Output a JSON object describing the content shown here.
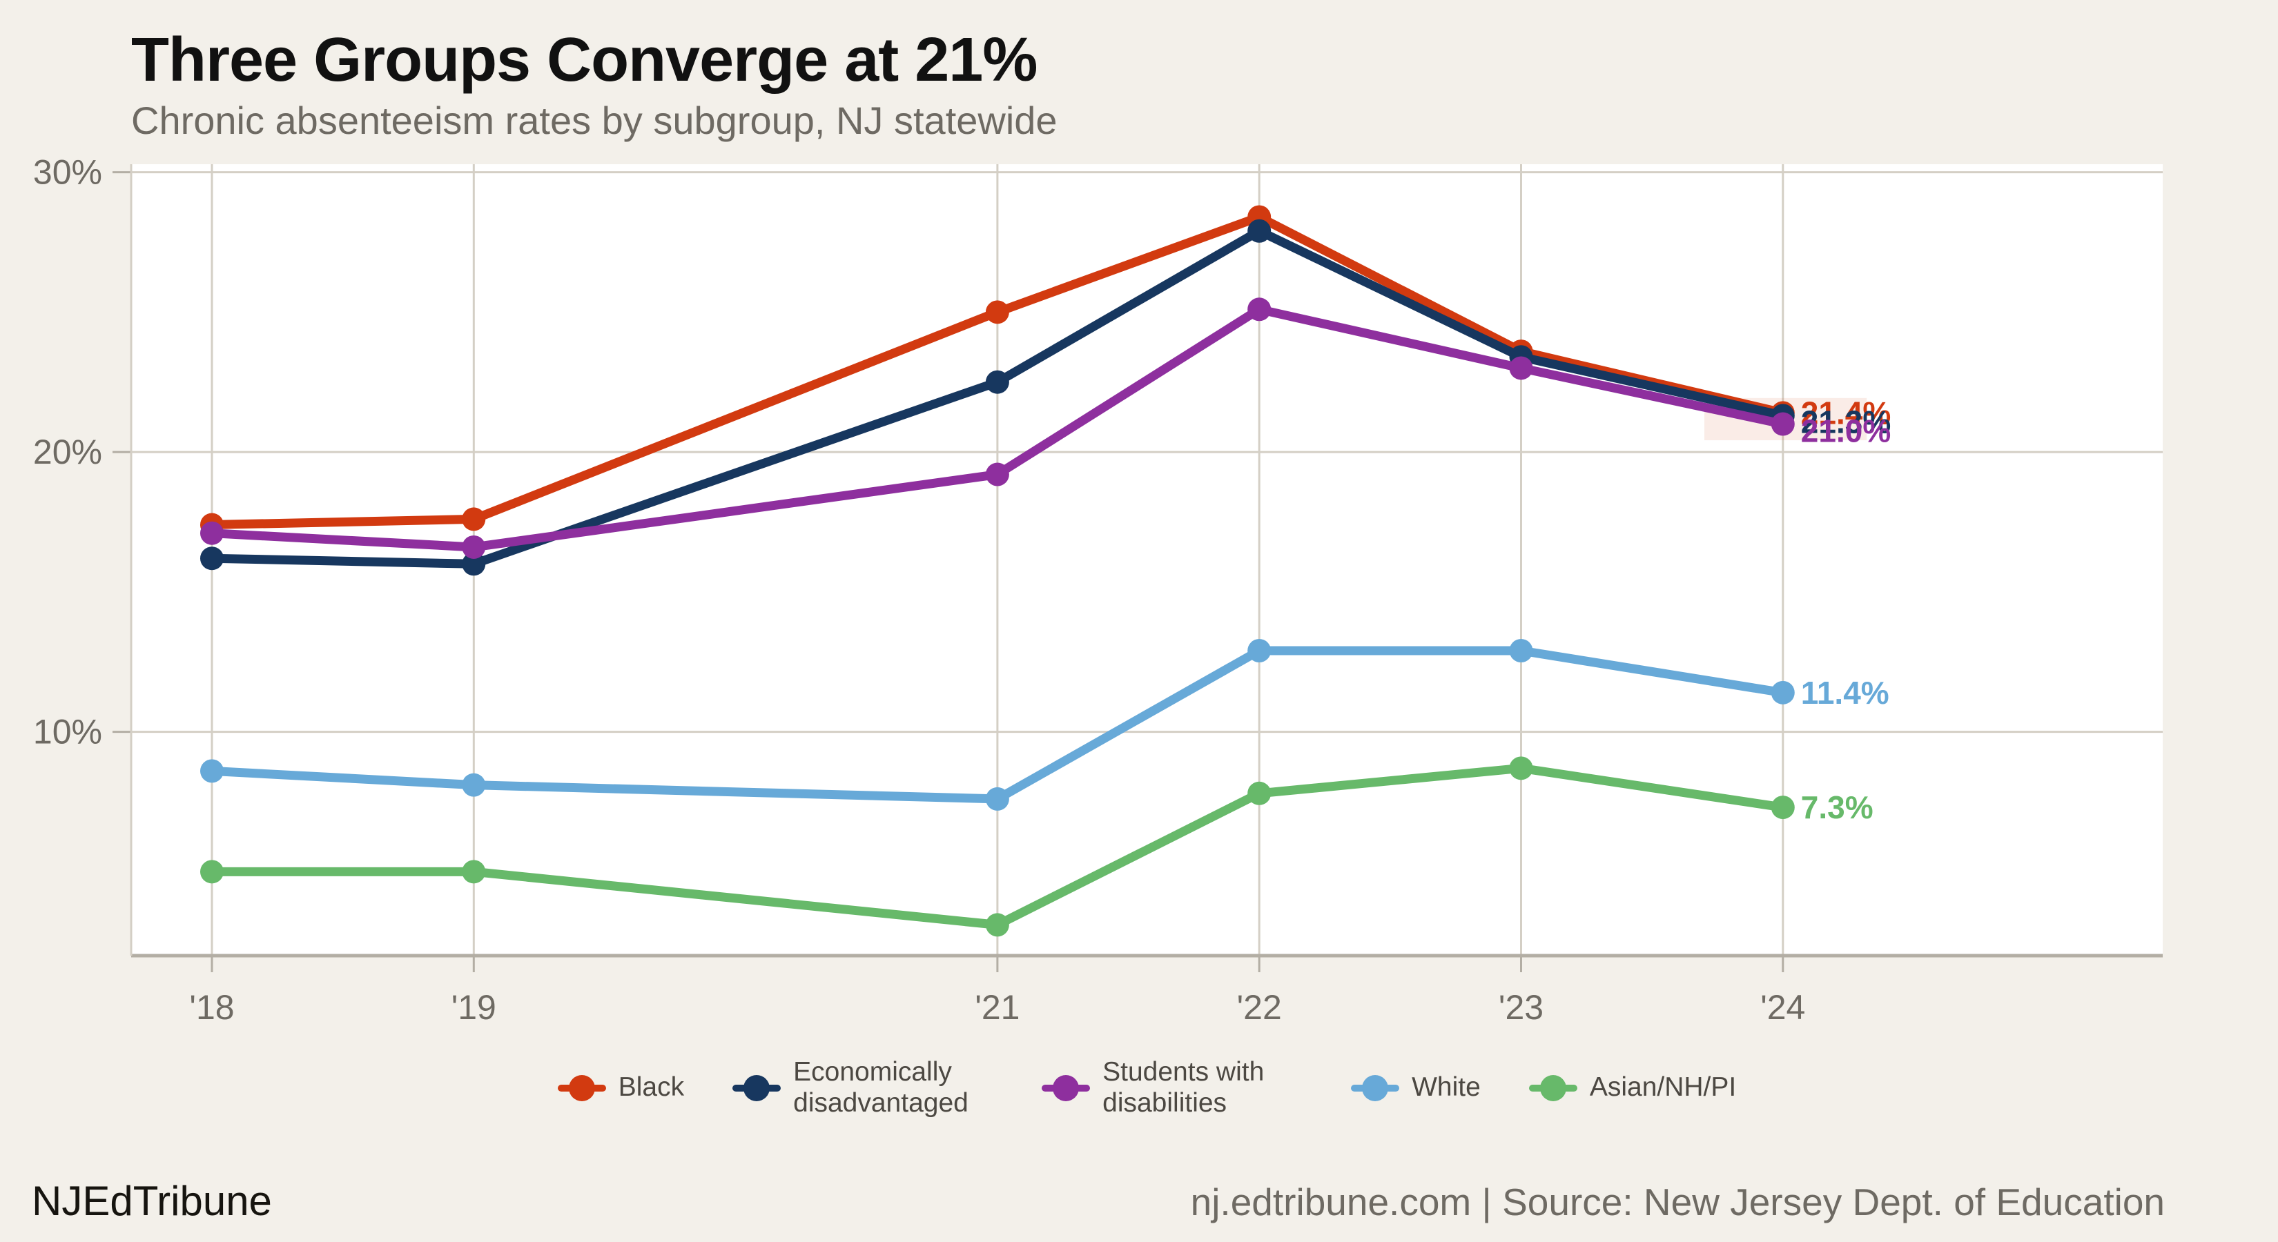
{
  "title": "Three Groups Converge at 21%",
  "subtitle": "Chronic absenteeism rates by subgroup, NJ statewide",
  "footer": {
    "left": "NJEdTribune",
    "right": "nj.edtribune.com | Source: New Jersey Dept. of Education"
  },
  "colors": {
    "background": "#f3f0ea",
    "plot_background": "#ffffff",
    "grid": "#d4cfc5",
    "axis": "#b3aea4",
    "axis_text": "#6e6a63",
    "title_text": "#111111",
    "subtitle_text": "#6e6a63",
    "legend_text": "#4c4842",
    "highlight_fill": "rgba(209,64,18,0.10)"
  },
  "chart_data": {
    "type": "line",
    "x": [
      2018,
      2019,
      2021,
      2022,
      2023,
      2024
    ],
    "x_tick_labels": [
      "'18",
      "'19",
      "'21",
      "'22",
      "'23",
      "'24"
    ],
    "y_ticks": [
      {
        "value": 10,
        "label": "10%"
      },
      {
        "value": 20,
        "label": "20%"
      },
      {
        "value": 30,
        "label": "30%"
      }
    ],
    "ylim": [
      2.0,
      30.3
    ],
    "grid": true,
    "legend_position": "bottom",
    "title": "Three Groups Converge at 21%",
    "subtitle": "Chronic absenteeism rates by subgroup, NJ statewide",
    "series": [
      {
        "name": "Black",
        "color": "#d23a10",
        "values": [
          17.4,
          17.6,
          25.0,
          28.4,
          23.6,
          21.4
        ],
        "end_label": "21.4%"
      },
      {
        "name": "Economically disadvantaged",
        "color": "#17375f",
        "values": [
          16.2,
          16.0,
          22.5,
          27.9,
          23.4,
          21.3
        ],
        "end_label": "21.3%"
      },
      {
        "name": "Students with disabilities",
        "color": "#8e2f9e",
        "values": [
          17.1,
          16.6,
          19.2,
          25.1,
          23.0,
          21.0
        ],
        "end_label": "21.0%"
      },
      {
        "name": "White",
        "color": "#67a9d8",
        "values": [
          8.6,
          8.1,
          7.6,
          12.9,
          12.9,
          11.4
        ],
        "end_label": "11.4%"
      },
      {
        "name": "Asian/NH/PI",
        "color": "#67b96a",
        "values": [
          5.0,
          5.0,
          3.1,
          7.8,
          8.7,
          7.3
        ],
        "end_label": "7.3%"
      }
    ],
    "annotations": [
      {
        "type": "highlight-rect",
        "x_from_year": 2023.7,
        "x_to_year": 2024.32,
        "y_from": 20.42,
        "y_to": 21.93
      }
    ]
  }
}
